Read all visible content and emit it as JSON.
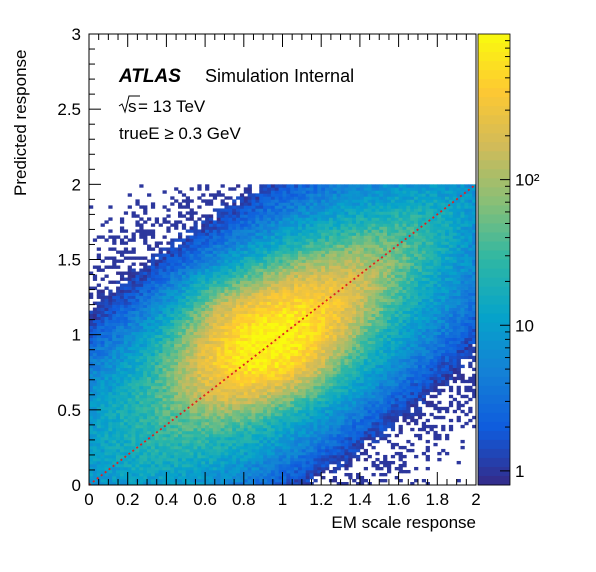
{
  "chart_data": {
    "type": "heatmap",
    "xlabel": "EM scale response",
    "ylabel": "Predicted response",
    "xlim": [
      0,
      2
    ],
    "ylim": [
      0,
      3
    ],
    "x_ticks": [
      "0",
      "0.2",
      "0.4",
      "0.6",
      "0.8",
      "1",
      "1.2",
      "1.4",
      "1.6",
      "1.8",
      "2"
    ],
    "y_ticks": [
      "0",
      "0.5",
      "1",
      "1.5",
      "2",
      "2.5",
      "3"
    ],
    "z_scale": "log",
    "z_range": [
      0.8,
      1000
    ],
    "colorbar_ticks": [
      "1",
      "10",
      "10²"
    ],
    "palette": "kBird",
    "bins": {
      "nx": 100,
      "ny": 100,
      "x_max_filled": 2.0,
      "y_max_filled": 2.0
    },
    "density_model": {
      "peak": {
        "x": 0.93,
        "y": 0.96,
        "count": 900
      },
      "ridge_slope_above": 0.55,
      "ridge_slope_below": 1.0
    },
    "reference_line": {
      "x": [
        0,
        2
      ],
      "y": [
        0,
        2
      ],
      "color": "#e0201e",
      "style": "dotted"
    },
    "annotations": {
      "experiment": "ATLAS",
      "label": "Simulation Internal",
      "energy_sqrt": "s",
      "energy_rest": " = 13 TeV",
      "cut": "trueE ≥ 0.3 GeV"
    }
  }
}
